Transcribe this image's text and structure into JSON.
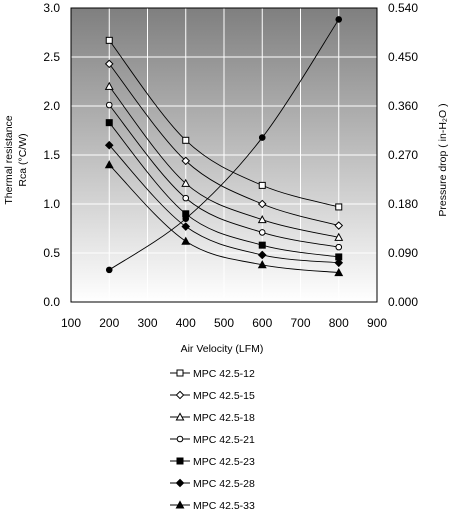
{
  "chart_data": {
    "type": "line",
    "xlabel": "Air Velocity (LFM)",
    "ylabel_lines": [
      "Thermal resistance",
      "Rca (°C/W)"
    ],
    "y2label": "Pressure drop ( in-H₂O )",
    "xlim": [
      100,
      900
    ],
    "xticks": [
      100,
      200,
      300,
      400,
      500,
      600,
      700,
      800,
      900
    ],
    "ylim": [
      0,
      3.0
    ],
    "yticks": [
      "0.0",
      "0.5",
      "1.0",
      "1.5",
      "2.0",
      "2.5",
      "3.0"
    ],
    "y2lim": [
      0,
      0.54
    ],
    "y2ticks": [
      "0.000",
      "0.090",
      "0.180",
      "0.270",
      "0.360",
      "0.450",
      "0.540"
    ],
    "background": "gradient-gray",
    "grid": true,
    "x": [
      200,
      400,
      600,
      800
    ],
    "series": [
      {
        "name": "MPC 42.5-12",
        "marker": "square-open",
        "values": [
          2.67,
          1.65,
          1.19,
          0.97
        ]
      },
      {
        "name": "MPC 42.5-15",
        "marker": "diamond-open",
        "values": [
          2.43,
          1.44,
          1.0,
          0.78
        ]
      },
      {
        "name": "MPC 42.5-18",
        "marker": "triangle-open",
        "values": [
          2.2,
          1.21,
          0.84,
          0.66
        ]
      },
      {
        "name": "MPC 42.5-21",
        "marker": "circle-open",
        "values": [
          2.01,
          1.06,
          0.71,
          0.56
        ]
      },
      {
        "name": "MPC 42.5-23",
        "marker": "square-filled",
        "values": [
          1.83,
          0.9,
          0.58,
          0.46
        ]
      },
      {
        "name": "MPC 42.5-28",
        "marker": "diamond-filled",
        "values": [
          1.6,
          0.77,
          0.48,
          0.4
        ]
      },
      {
        "name": "MPC 42.5-33",
        "marker": "triangle-filled",
        "values": [
          1.4,
          0.62,
          0.38,
          0.3
        ]
      }
    ],
    "pressure_series": {
      "name": "",
      "marker": "circle-filled",
      "axis": "right",
      "values": [
        0.059,
        0.153,
        0.302,
        0.519
      ]
    }
  }
}
